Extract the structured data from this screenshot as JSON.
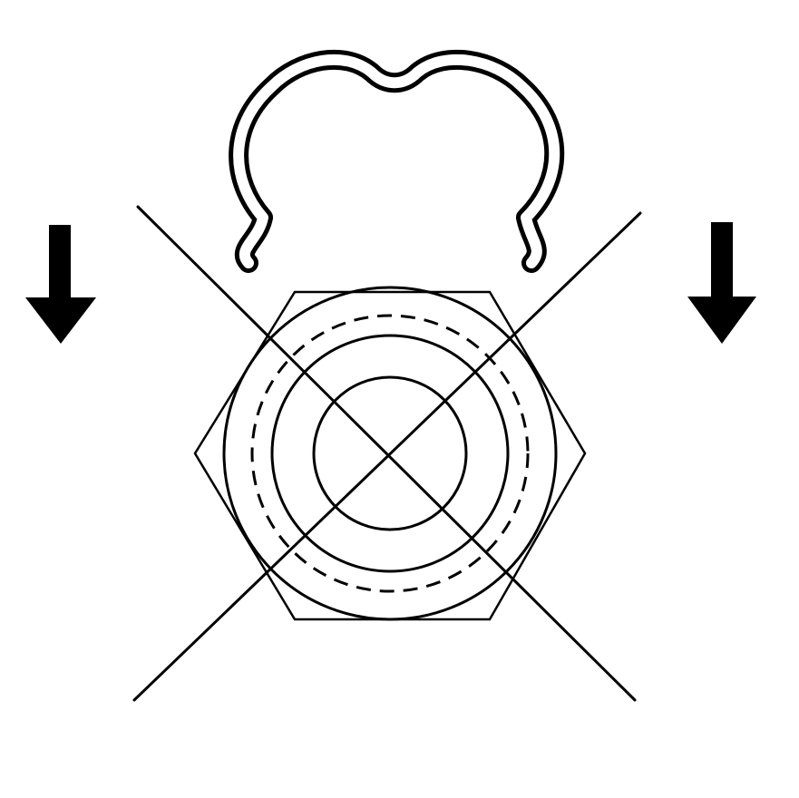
{
  "diagram": {
    "elements": [
      {
        "name": "retaining-clip",
        "kind": "shape"
      },
      {
        "name": "hex-fitting",
        "kind": "shape"
      },
      {
        "name": "outer-ring",
        "kind": "shape"
      },
      {
        "name": "dashed-ring",
        "kind": "shape"
      },
      {
        "name": "middle-ring",
        "kind": "shape"
      },
      {
        "name": "inner-ring",
        "kind": "shape"
      },
      {
        "name": "x-cross-lines",
        "kind": "shape"
      },
      {
        "name": "down-arrow-left",
        "kind": "shape"
      },
      {
        "name": "down-arrow-right",
        "kind": "shape"
      }
    ]
  },
  "colors": {
    "ink": "#000000",
    "background": "#ffffff"
  }
}
